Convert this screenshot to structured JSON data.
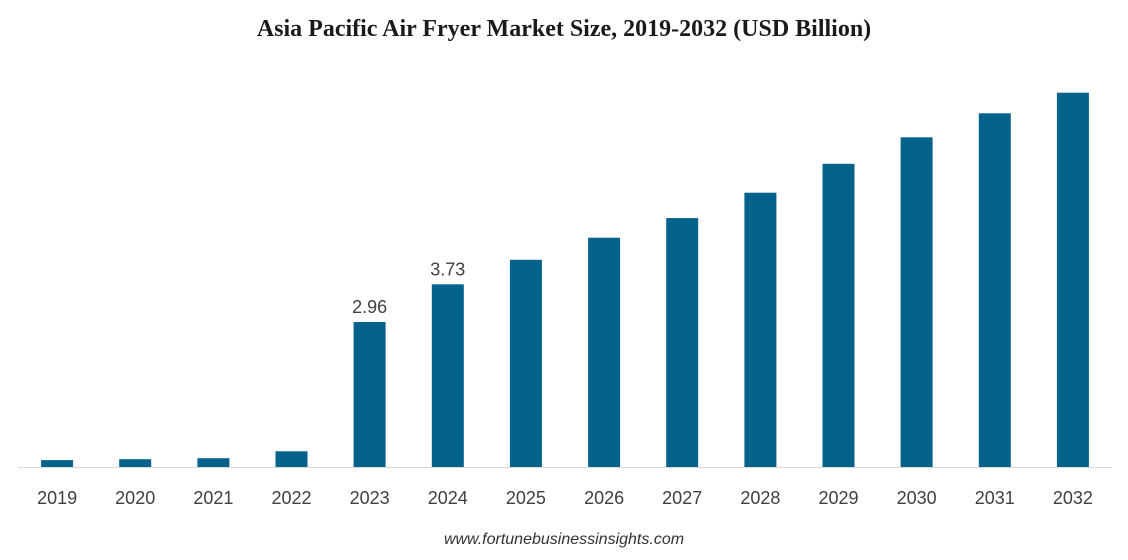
{
  "chart_data": {
    "type": "bar",
    "title": "Asia Pacific Air Fryer Market Size, 2019-2032 (USD Billion)",
    "xlabel": "",
    "ylabel": "",
    "categories": [
      "2019",
      "2020",
      "2021",
      "2022",
      "2023",
      "2024",
      "2025",
      "2026",
      "2027",
      "2028",
      "2029",
      "2030",
      "2031",
      "2032"
    ],
    "values": [
      0.14,
      0.16,
      0.18,
      0.32,
      2.96,
      3.73,
      4.23,
      4.68,
      5.08,
      5.6,
      6.19,
      6.73,
      7.22,
      7.64
    ],
    "data_labels": [
      "",
      "",
      "",
      "",
      "2.96",
      "3.73",
      "",
      "",
      "",
      "",
      "",
      "",
      "",
      ""
    ],
    "ylim": [
      0,
      7.9
    ],
    "grid": false,
    "legend": "none",
    "bar_color": "#05628a",
    "axis_color": "#d9d9d9"
  },
  "source": "www.fortunebusinessinsights.com"
}
